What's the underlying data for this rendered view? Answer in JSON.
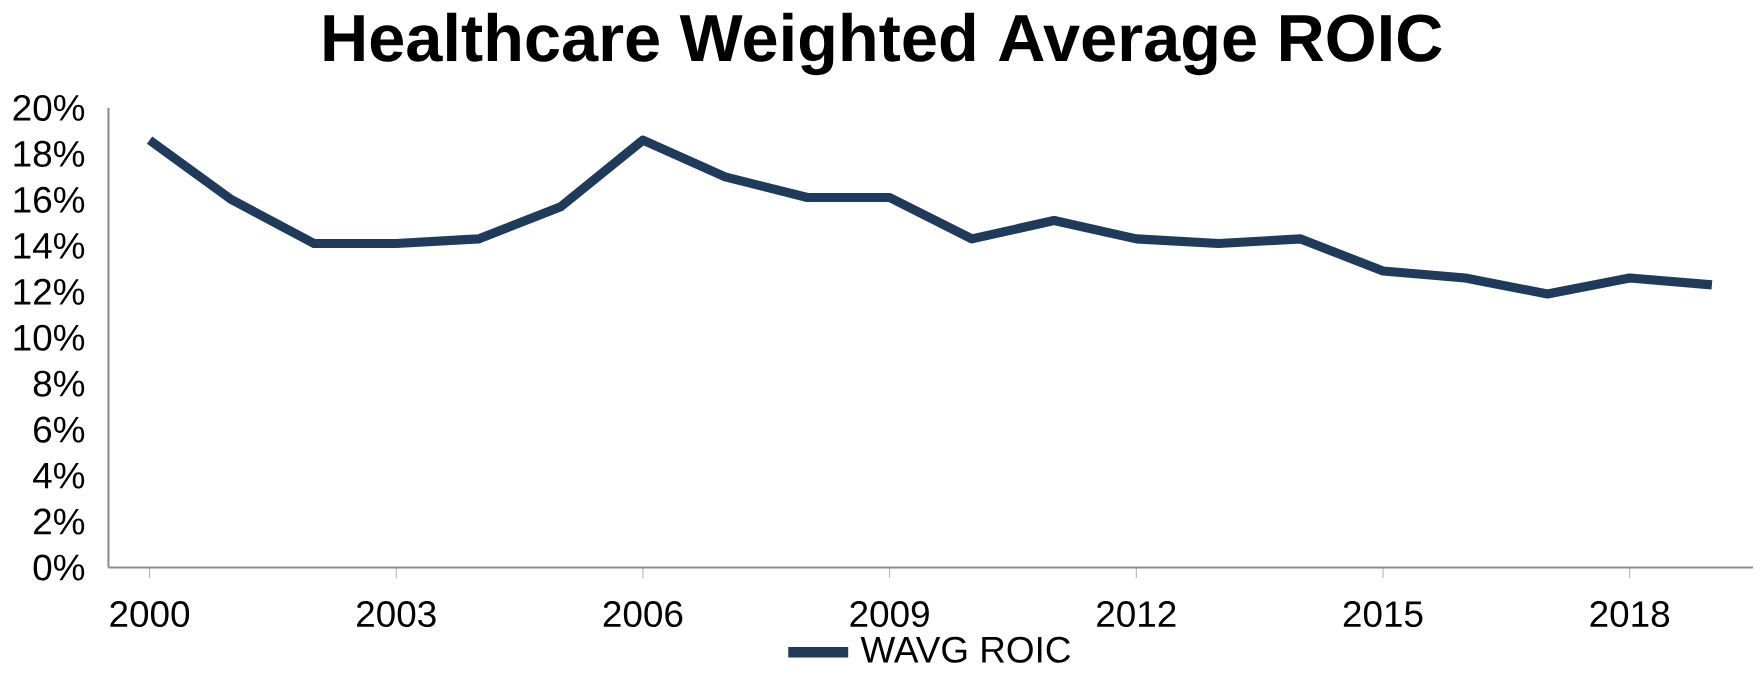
{
  "chart_data": {
    "type": "line",
    "title": "Healthcare Weighted Average ROIC",
    "x": [
      2000,
      2001,
      2002,
      2003,
      2004,
      2005,
      2006,
      2007,
      2008,
      2009,
      2010,
      2011,
      2012,
      2013,
      2014,
      2015,
      2016,
      2017,
      2018,
      2019
    ],
    "series": [
      {
        "name": "WAVG ROIC",
        "color": "#1f3a5a",
        "values": [
          18.6,
          16.0,
          14.1,
          14.1,
          14.3,
          15.7,
          18.6,
          17.0,
          16.1,
          16.1,
          14.3,
          15.1,
          14.3,
          14.1,
          14.3,
          12.9,
          12.6,
          11.9,
          12.6,
          12.3
        ]
      }
    ],
    "xlim": [
      1999.5,
      2019.5
    ],
    "xticks": [
      2000,
      2003,
      2006,
      2009,
      2012,
      2015,
      2018
    ],
    "ylim": [
      0,
      20
    ],
    "yticks": [
      {
        "value": 0,
        "label": "0%"
      },
      {
        "value": 2,
        "label": "2%"
      },
      {
        "value": 4,
        "label": "4%"
      },
      {
        "value": 6,
        "label": "6%"
      },
      {
        "value": 8,
        "label": "8%"
      },
      {
        "value": 10,
        "label": "10%"
      },
      {
        "value": 12,
        "label": "12%"
      },
      {
        "value": 14,
        "label": "14%"
      },
      {
        "value": 16,
        "label": "16%"
      },
      {
        "value": 18,
        "label": "18%"
      },
      {
        "value": 20,
        "label": "20%"
      }
    ],
    "legend": "bottom",
    "grid": false,
    "marker": "none",
    "line_style": "solid"
  }
}
